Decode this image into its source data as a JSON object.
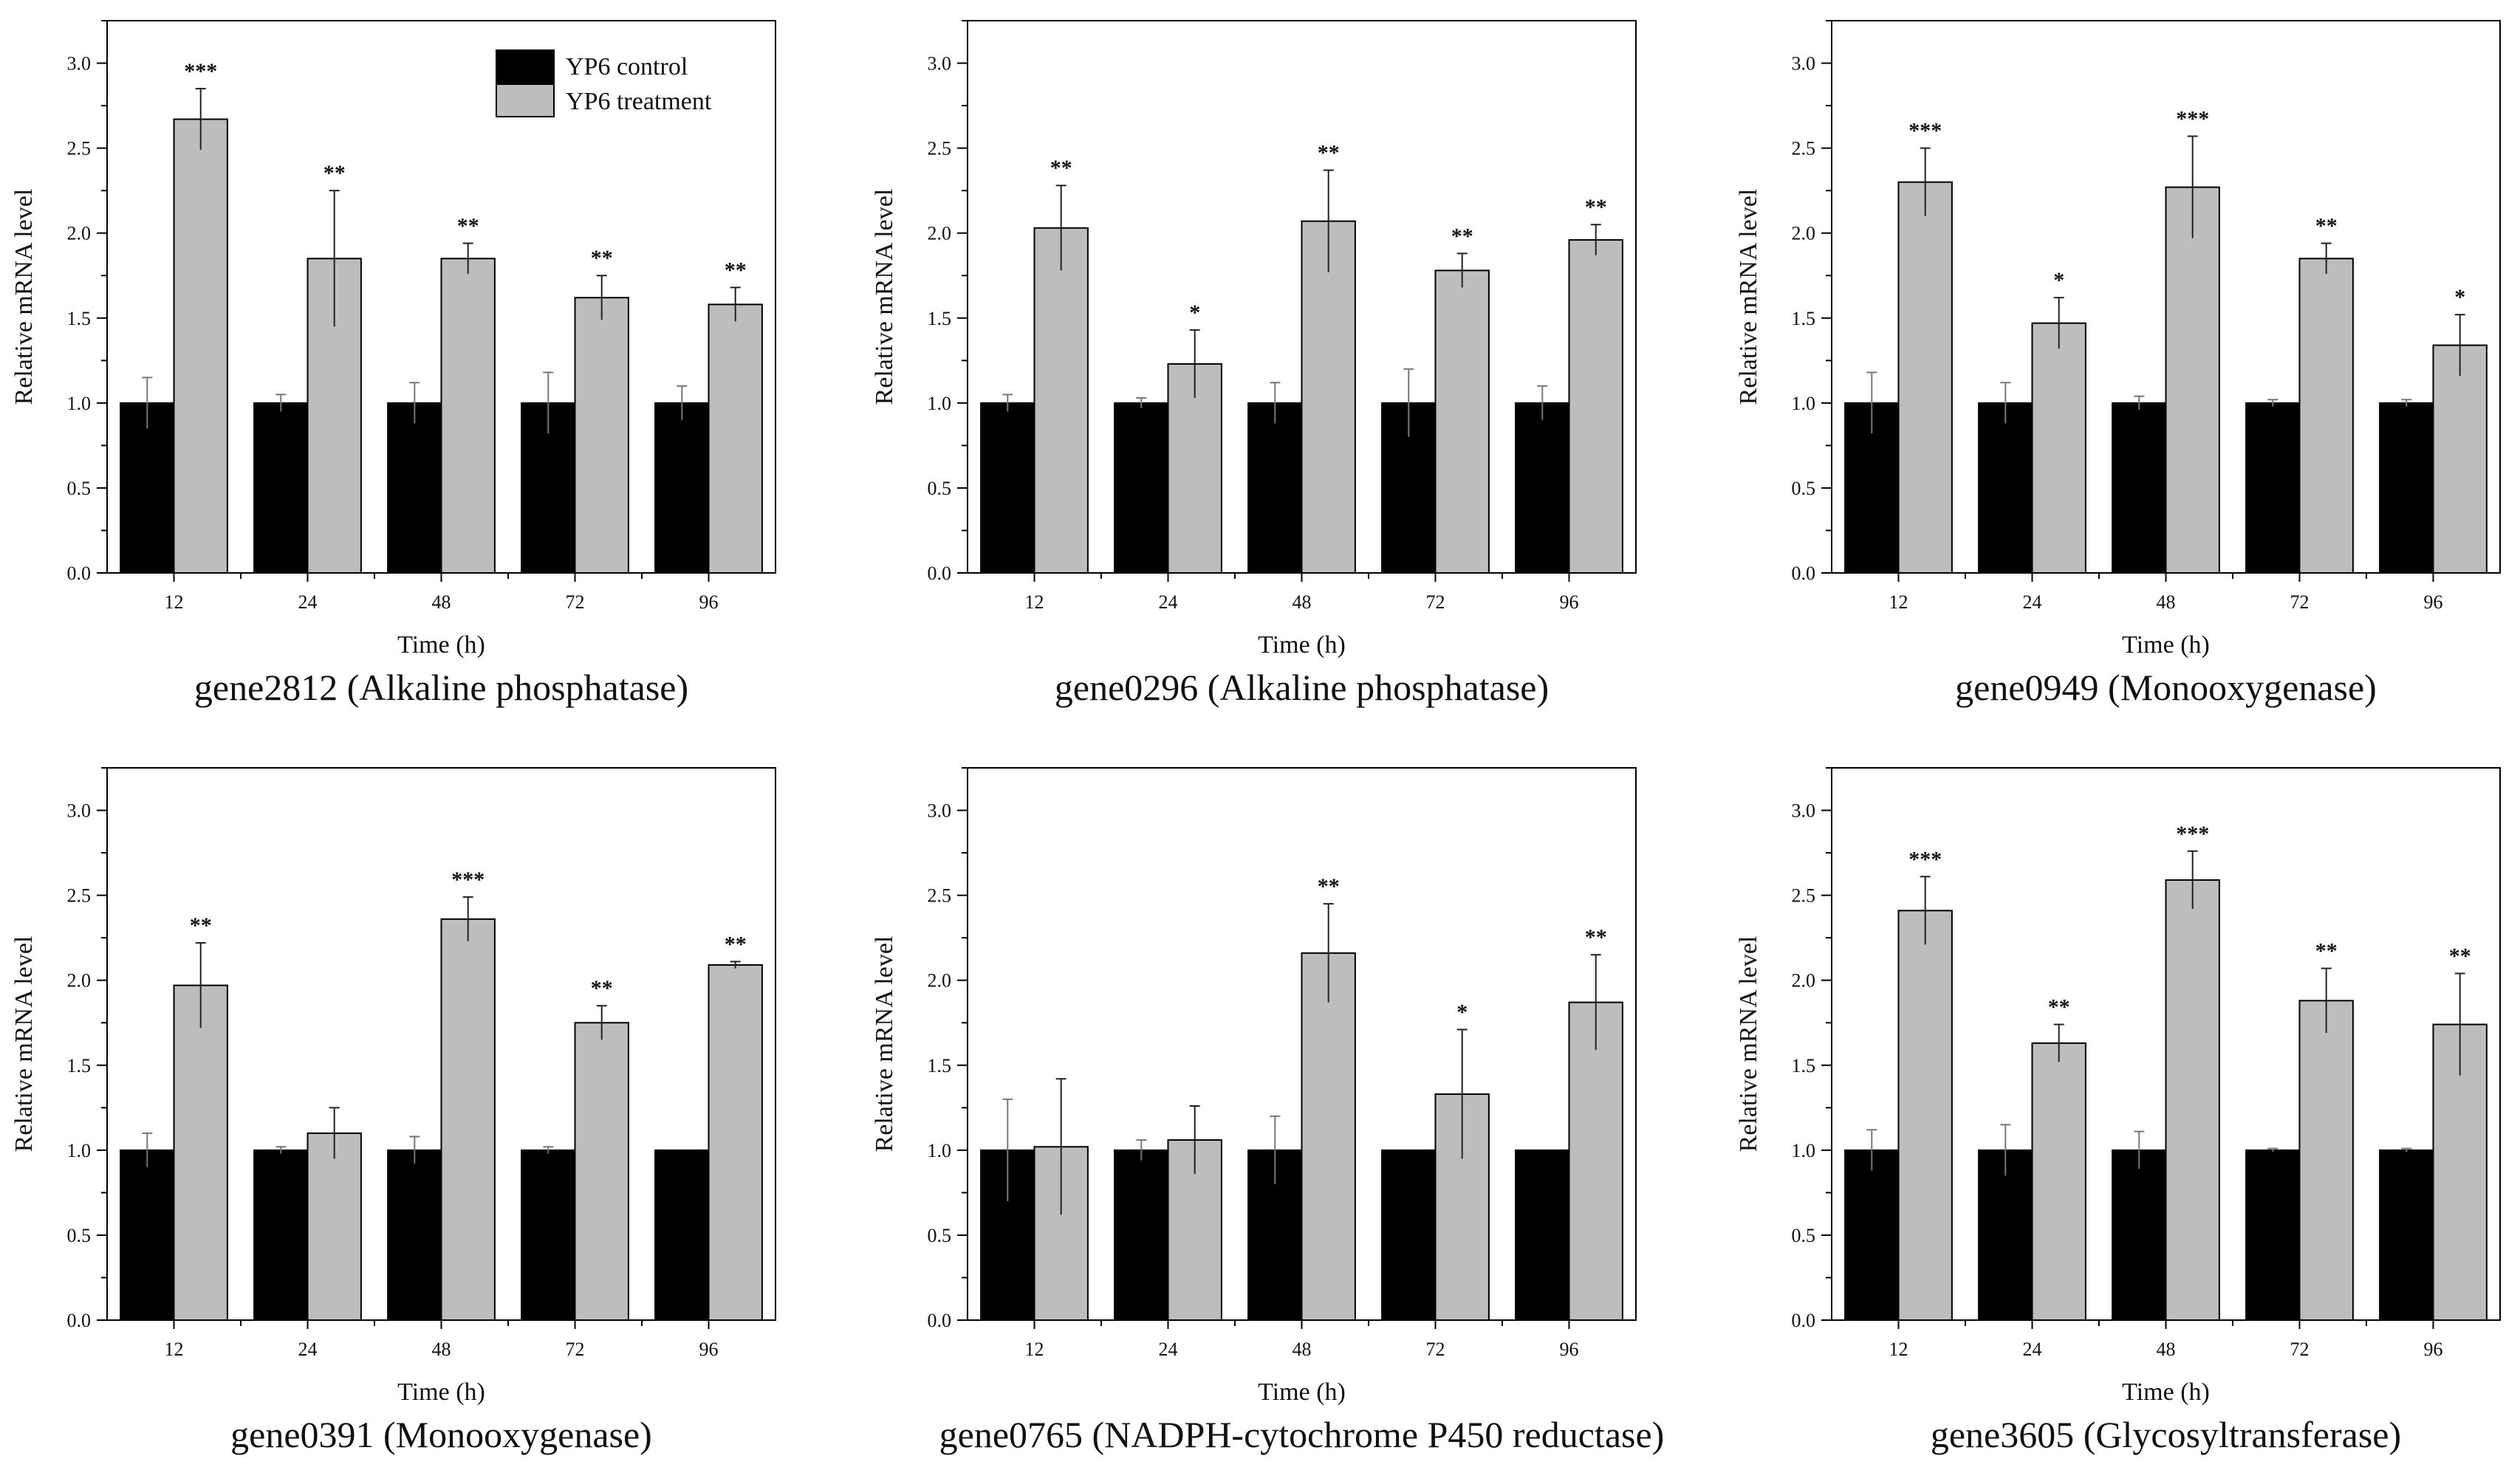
{
  "figure": {
    "legend": [
      {
        "name": "YP6 control",
        "color": "#000000"
      },
      {
        "name": "YP6 treatment",
        "color": "#bdbdbd"
      }
    ]
  },
  "chart_data": [
    {
      "type": "bar",
      "title": "gene2812 (Alkaline phosphatase)",
      "xlabel": "Time (h)",
      "ylabel": "Relative mRNA level",
      "ylim": [
        0,
        3.25
      ],
      "yticks": [
        "0.0",
        "0.5",
        "1.0",
        "1.5",
        "2.0",
        "2.5",
        "3.0"
      ],
      "categories": [
        "12",
        "24",
        "48",
        "72",
        "96"
      ],
      "series": [
        {
          "name": "YP6 control",
          "values": [
            1.0,
            1.0,
            1.0,
            1.0,
            1.0
          ],
          "errors": [
            0.15,
            0.05,
            0.12,
            0.18,
            0.1
          ]
        },
        {
          "name": "YP6 treatment",
          "values": [
            2.67,
            1.85,
            1.85,
            1.62,
            1.58
          ],
          "errors": [
            0.18,
            0.4,
            0.09,
            0.13,
            0.1
          ]
        }
      ],
      "significance": [
        "***",
        "**",
        "**",
        "**",
        "**"
      ]
    },
    {
      "type": "bar",
      "title": "gene0296 (Alkaline phosphatase)",
      "xlabel": "Time (h)",
      "ylabel": "Relative mRNA level",
      "ylim": [
        0,
        3.25
      ],
      "yticks": [
        "0.0",
        "0.5",
        "1.0",
        "1.5",
        "2.0",
        "2.5",
        "3.0"
      ],
      "categories": [
        "12",
        "24",
        "48",
        "72",
        "96"
      ],
      "series": [
        {
          "name": "YP6 control",
          "values": [
            1.0,
            1.0,
            1.0,
            1.0,
            1.0
          ],
          "errors": [
            0.05,
            0.03,
            0.12,
            0.2,
            0.1
          ]
        },
        {
          "name": "YP6 treatment",
          "values": [
            2.03,
            1.23,
            2.07,
            1.78,
            1.96
          ],
          "errors": [
            0.25,
            0.2,
            0.3,
            0.1,
            0.09
          ]
        }
      ],
      "significance": [
        "**",
        "*",
        "**",
        "**",
        "**"
      ]
    },
    {
      "type": "bar",
      "title": "gene0949 (Monooxygenase)",
      "xlabel": "Time (h)",
      "ylabel": "Relative mRNA level",
      "ylim": [
        0,
        3.25
      ],
      "yticks": [
        "0.0",
        "0.5",
        "1.0",
        "1.5",
        "2.0",
        "2.5",
        "3.0"
      ],
      "categories": [
        "12",
        "24",
        "48",
        "72",
        "96"
      ],
      "series": [
        {
          "name": "YP6 control",
          "values": [
            1.0,
            1.0,
            1.0,
            1.0,
            1.0
          ],
          "errors": [
            0.18,
            0.12,
            0.04,
            0.02,
            0.02
          ]
        },
        {
          "name": "YP6 treatment",
          "values": [
            2.3,
            1.47,
            2.27,
            1.85,
            1.34
          ],
          "errors": [
            0.2,
            0.15,
            0.3,
            0.09,
            0.18
          ]
        }
      ],
      "significance": [
        "***",
        "*",
        "***",
        "**",
        "*"
      ]
    },
    {
      "type": "bar",
      "title": "gene0391 (Monooxygenase)",
      "xlabel": "Time (h)",
      "ylabel": "Relative mRNA level",
      "ylim": [
        0,
        3.25
      ],
      "yticks": [
        "0.0",
        "0.5",
        "1.0",
        "1.5",
        "2.0",
        "2.5",
        "3.0"
      ],
      "categories": [
        "12",
        "24",
        "48",
        "72",
        "96"
      ],
      "series": [
        {
          "name": "YP6 control",
          "values": [
            1.0,
            1.0,
            1.0,
            1.0,
            1.0
          ],
          "errors": [
            0.1,
            0.02,
            0.08,
            0.02,
            0.0
          ]
        },
        {
          "name": "YP6 treatment",
          "values": [
            1.97,
            1.1,
            2.36,
            1.75,
            2.09
          ],
          "errors": [
            0.25,
            0.15,
            0.13,
            0.1,
            0.02
          ]
        }
      ],
      "significance": [
        "**",
        "",
        "***",
        "**",
        "**"
      ]
    },
    {
      "type": "bar",
      "title": "gene0765 (NADPH-cytochrome P450 reductase)",
      "xlabel": "Time (h)",
      "ylabel": "Relative mRNA level",
      "ylim": [
        0,
        3.25
      ],
      "yticks": [
        "0.0",
        "0.5",
        "1.0",
        "1.5",
        "2.0",
        "2.5",
        "3.0"
      ],
      "categories": [
        "12",
        "24",
        "48",
        "72",
        "96"
      ],
      "series": [
        {
          "name": "YP6 control",
          "values": [
            1.0,
            1.0,
            1.0,
            1.0,
            1.0
          ],
          "errors": [
            0.3,
            0.06,
            0.2,
            0.0,
            0.0
          ]
        },
        {
          "name": "YP6 treatment",
          "values": [
            1.02,
            1.06,
            2.16,
            1.33,
            1.87
          ],
          "errors": [
            0.4,
            0.2,
            0.29,
            0.38,
            0.28
          ]
        }
      ],
      "significance": [
        "",
        "",
        "**",
        "*",
        "**"
      ]
    },
    {
      "type": "bar",
      "title": "gene3605 (Glycosyltransferase)",
      "xlabel": "Time (h)",
      "ylabel": "Relative mRNA level",
      "ylim": [
        0,
        3.25
      ],
      "yticks": [
        "0.0",
        "0.5",
        "1.0",
        "1.5",
        "2.0",
        "2.5",
        "3.0"
      ],
      "categories": [
        "12",
        "24",
        "48",
        "72",
        "96"
      ],
      "series": [
        {
          "name": "YP6 control",
          "values": [
            1.0,
            1.0,
            1.0,
            1.0,
            1.0
          ],
          "errors": [
            0.12,
            0.15,
            0.11,
            0.01,
            0.01
          ]
        },
        {
          "name": "YP6 treatment",
          "values": [
            2.41,
            1.63,
            2.59,
            1.88,
            1.74
          ],
          "errors": [
            0.2,
            0.11,
            0.17,
            0.19,
            0.3
          ]
        }
      ],
      "significance": [
        "***",
        "**",
        "***",
        "**",
        "**"
      ]
    }
  ]
}
